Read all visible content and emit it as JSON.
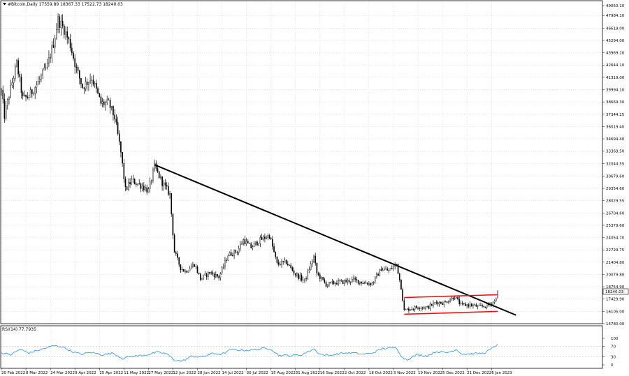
{
  "chart_data": [
    {
      "type": "candlestick",
      "title": "#Bitcoin,Daily  17559.89 18367.33 17522.73 18240.03",
      "symbol": "#Bitcoin",
      "timeframe": "Daily",
      "ohlc_last": {
        "open": 17559.89,
        "high": 18367.33,
        "low": 17522.73,
        "close": 18240.03
      },
      "current_price_label": "18240.03",
      "ylim": [
        14780.0,
        49050
      ],
      "y_tick_labels": [
        "49050.10",
        "47984.10",
        "46619.00",
        "45294.00",
        "43969.10",
        "42644.10",
        "41319.00",
        "39994.10",
        "38669.30",
        "37344.25",
        "36019.40",
        "34694.40",
        "33369.50",
        "32044.55",
        "30679.60",
        "29354.60",
        "28029.55",
        "26704.60",
        "25379.60",
        "24054.70",
        "22729.75",
        "21404.80",
        "20079.80",
        "18754.90",
        "17429.90",
        "16105.00",
        "14780.00"
      ],
      "x_tick_labels": [
        "20 Feb 2022",
        "8 Mar 2022",
        "24 Mar 2022",
        "9 Apr 2022",
        "25 Apr 2022",
        "11 May 2022",
        "27 May 2022",
        "12 Jun 2022",
        "28 Jun 2022",
        "14 Jul 2022",
        "30 Jul 2022",
        "15 Aug 2022",
        "31 Aug 2022",
        "16 Sep 2022",
        "2 Oct 2022",
        "18 Oct 2022",
        "3 Nov 2022",
        "19 Nov 2022",
        "5 Dec 2022",
        "21 Dec 2022",
        "6 Jan 2023"
      ],
      "series": [
        {
          "name": "#Bitcoin Daily",
          "x_start": "20 Feb 2022",
          "x_end": "10 Jan 2023",
          "keypoints": [
            [
              "20 Feb 2022",
              39800
            ],
            [
              "22 Feb 2022",
              37200
            ],
            [
              "25 Feb 2022",
              39400
            ],
            [
              "2 Mar 2022",
              42800
            ],
            [
              "6 Mar 2022",
              39000
            ],
            [
              "10 Mar 2022",
              39300
            ],
            [
              "16 Mar 2022",
              40800
            ],
            [
              "22 Mar 2022",
              42500
            ],
            [
              "26 Mar 2022",
              45000
            ],
            [
              "29 Mar 2022",
              47500
            ],
            [
              "2 Apr 2022",
              46500
            ],
            [
              "6 Apr 2022",
              44800
            ],
            [
              "10 Apr 2022",
              42200
            ],
            [
              "14 Apr 2022",
              40300
            ],
            [
              "20 Apr 2022",
              41300
            ],
            [
              "26 Apr 2022",
              38500
            ],
            [
              "1 May 2022",
              38500
            ],
            [
              "5 May 2022",
              37000
            ],
            [
              "9 May 2022",
              33200
            ],
            [
              "12 May 2022",
              29200
            ],
            [
              "16 May 2022",
              30200
            ],
            [
              "23 May 2022",
              29600
            ],
            [
              "27 May 2022",
              29100
            ],
            [
              "31 May 2022",
              31700
            ],
            [
              "5 Jun 2022",
              30000
            ],
            [
              "10 Jun 2022",
              28700
            ],
            [
              "13 Jun 2022",
              22500
            ],
            [
              "17 Jun 2022",
              20800
            ],
            [
              "20 Jun 2022",
              20400
            ],
            [
              "26 Jun 2022",
              21200
            ],
            [
              "30 Jun 2022",
              19600
            ],
            [
              "6 Jul 2022",
              20300
            ],
            [
              "12 Jul 2022",
              19800
            ],
            [
              "18 Jul 2022",
              22200
            ],
            [
              "24 Jul 2022",
              22600
            ],
            [
              "28 Jul 2022",
              23800
            ],
            [
              "2 Aug 2022",
              23000
            ],
            [
              "8 Aug 2022",
              23800
            ],
            [
              "14 Aug 2022",
              24300
            ],
            [
              "19 Aug 2022",
              21200
            ],
            [
              "25 Aug 2022",
              21400
            ],
            [
              "31 Aug 2022",
              20100
            ],
            [
              "6 Sep 2022",
              19400
            ],
            [
              "12 Sep 2022",
              22000
            ],
            [
              "14 Sep 2022",
              20200
            ],
            [
              "20 Sep 2022",
              19000
            ],
            [
              "26 Sep 2022",
              19200
            ],
            [
              "2 Oct 2022",
              19300
            ],
            [
              "8 Oct 2022",
              19500
            ],
            [
              "14 Oct 2022",
              19200
            ],
            [
              "20 Oct 2022",
              19100
            ],
            [
              "26 Oct 2022",
              20700
            ],
            [
              "31 Oct 2022",
              20500
            ],
            [
              "5 Nov 2022",
              21200
            ],
            [
              "8 Nov 2022",
              18700
            ],
            [
              "10 Nov 2022",
              16200
            ],
            [
              "14 Nov 2022",
              16400
            ],
            [
              "20 Nov 2022",
              16600
            ],
            [
              "25 Nov 2022",
              16500
            ],
            [
              "1 Dec 2022",
              17100
            ],
            [
              "6 Dec 2022",
              17000
            ],
            [
              "13 Dec 2022",
              17700
            ],
            [
              "17 Dec 2022",
              16800
            ],
            [
              "23 Dec 2022",
              16800
            ],
            [
              "29 Dec 2022",
              16600
            ],
            [
              "3 Jan 2023",
              16700
            ],
            [
              "8 Jan 2023",
              17200
            ],
            [
              "10 Jan 2023",
              18240
            ]
          ]
        }
      ],
      "annotations": [
        {
          "type": "trendline",
          "color": "#000000",
          "from": [
            "31 May 2022",
            31900
          ],
          "to": [
            "22 Jan 2023",
            15700
          ]
        },
        {
          "type": "channel-line",
          "color": "#ff0000",
          "from": [
            "10 Nov 2022",
            17600
          ],
          "to": [
            "10 Jan 2023",
            17900
          ]
        },
        {
          "type": "channel-line",
          "color": "#ff0000",
          "from": [
            "10 Nov 2022",
            15800
          ],
          "to": [
            "10 Jan 2023",
            16100
          ]
        }
      ],
      "grid": true
    },
    {
      "type": "line",
      "title": "RSI(14) 77.7935",
      "indicator": "RSI(14)",
      "value": 77.7935,
      "ylim": [
        0,
        100
      ],
      "y_tick_labels": [
        "100",
        "70",
        "30",
        "0"
      ],
      "levels": [
        70,
        30
      ],
      "series": [
        {
          "name": "RSI(14)",
          "color": "#1e90ff",
          "keypoints": [
            [
              "20 Feb 2022",
              45
            ],
            [
              "26 Feb 2022",
              38
            ],
            [
              "4 Mar 2022",
              58
            ],
            [
              "10 Mar 2022",
              45
            ],
            [
              "18 Mar 2022",
              58
            ],
            [
              "26 Mar 2022",
              72
            ],
            [
              "1 Apr 2022",
              68
            ],
            [
              "7 Apr 2022",
              50
            ],
            [
              "13 Apr 2022",
              40
            ],
            [
              "20 Apr 2022",
              47
            ],
            [
              "27 Apr 2022",
              38
            ],
            [
              "4 May 2022",
              44
            ],
            [
              "10 May 2022",
              24
            ],
            [
              "14 May 2022",
              30
            ],
            [
              "20 May 2022",
              34
            ],
            [
              "28 May 2022",
              40
            ],
            [
              "2 Jun 2022",
              48
            ],
            [
              "8 Jun 2022",
              42
            ],
            [
              "13 Jun 2022",
              18
            ],
            [
              "18 Jun 2022",
              14
            ],
            [
              "24 Jun 2022",
              32
            ],
            [
              "1 Jul 2022",
              30
            ],
            [
              "8 Jul 2022",
              43
            ],
            [
              "14 Jul 2022",
              40
            ],
            [
              "20 Jul 2022",
              58
            ],
            [
              "27 Jul 2022",
              55
            ],
            [
              "2 Aug 2022",
              55
            ],
            [
              "10 Aug 2022",
              62
            ],
            [
              "15 Aug 2022",
              60
            ],
            [
              "20 Aug 2022",
              36
            ],
            [
              "28 Aug 2022",
              35
            ],
            [
              "4 Sep 2022",
              38
            ],
            [
              "12 Sep 2022",
              60
            ],
            [
              "16 Sep 2022",
              40
            ],
            [
              "22 Sep 2022",
              35
            ],
            [
              "30 Sep 2022",
              44
            ],
            [
              "8 Oct 2022",
              45
            ],
            [
              "14 Oct 2022",
              40
            ],
            [
              "20 Oct 2022",
              44
            ],
            [
              "27 Oct 2022",
              62
            ],
            [
              "5 Nov 2022",
              64
            ],
            [
              "9 Nov 2022",
              26
            ],
            [
              "12 Nov 2022",
              20
            ],
            [
              "18 Nov 2022",
              38
            ],
            [
              "25 Nov 2022",
              34
            ],
            [
              "1 Dec 2022",
              50
            ],
            [
              "8 Dec 2022",
              46
            ],
            [
              "14 Dec 2022",
              58
            ],
            [
              "18 Dec 2022",
              40
            ],
            [
              "25 Dec 2022",
              42
            ],
            [
              "1 Jan 2023",
              44
            ],
            [
              "6 Jan 2023",
              60
            ],
            [
              "10 Jan 2023",
              77.79
            ]
          ]
        }
      ]
    }
  ]
}
